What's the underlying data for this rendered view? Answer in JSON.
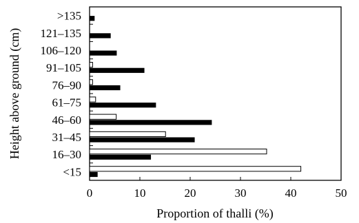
{
  "chart_data": {
    "type": "bar",
    "orientation": "horizontal",
    "xlabel": "Proportion of thalli (%)",
    "ylabel": "Height above ground (cm)",
    "xlim": [
      0,
      50
    ],
    "xticks": [
      "0",
      "10",
      "20",
      "30",
      "40",
      "50"
    ],
    "categories": [
      "<15",
      "16–30",
      "31–45",
      "46–60",
      "61–75",
      "76–90",
      "91–105",
      "106–120",
      "121–135",
      ">135"
    ],
    "series": [
      {
        "fill": "#ffffff",
        "values": [
          42,
          35.2,
          15.1,
          5.3,
          1.2,
          0.6,
          0.6,
          0,
          0,
          0
        ]
      },
      {
        "fill": "#000000",
        "values": [
          1.6,
          12.2,
          20.9,
          24.3,
          13.2,
          6.1,
          10.9,
          5.4,
          4.2,
          1.0
        ]
      }
    ],
    "grid": false,
    "legend": "none"
  }
}
